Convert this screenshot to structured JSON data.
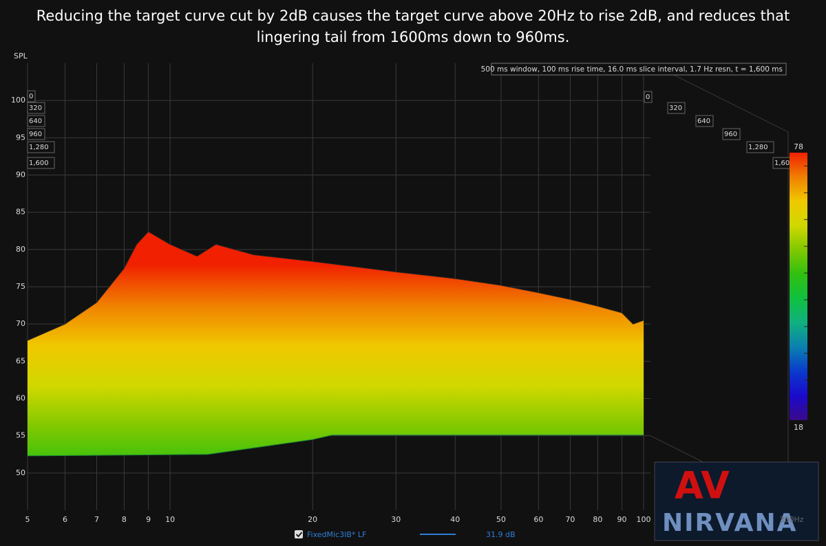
{
  "chart_data": {
    "type": "waterfall",
    "title": "Reducing the target curve cut by 2dB causes the target curve above 20Hz to rise 2dB, and reduces that lingering tail from 1600ms down to 960ms.",
    "ylabel": "SPL",
    "info": "500 ms window, 100 ms rise time, 16.0 ms slice interval, 1.7 Hz resn, t = 1,600 ms",
    "xlim": [
      5,
      100
    ],
    "xticks": [
      5,
      6,
      7,
      8,
      9,
      10,
      20,
      30,
      40,
      50,
      60,
      70,
      80,
      90,
      100
    ],
    "x_end_label": "300Hz",
    "ylim": [
      45,
      105
    ],
    "yticks": [
      50,
      55,
      60,
      65,
      70,
      75,
      80,
      85,
      90,
      95,
      100
    ],
    "time_ticks": [
      0,
      320,
      640,
      960,
      {
        "value": 1280,
        "label": "1,280"
      },
      {
        "value": 1600,
        "label": "1,600"
      }
    ],
    "surface_top": {
      "x": [
        5,
        6,
        7,
        8,
        8.5,
        9,
        10,
        11.4,
        12.5,
        15,
        20,
        30,
        40,
        50,
        60,
        70,
        80,
        90,
        95,
        100
      ],
      "values": [
        67.8,
        70,
        72.9,
        77.5,
        80.7,
        82.4,
        80.7,
        79.1,
        80.7,
        79.3,
        78.4,
        77,
        76.1,
        75.2,
        74.2,
        73.3,
        72.4,
        71.5,
        70,
        70.5
      ]
    },
    "surface_floor": {
      "x": [
        5,
        12,
        20,
        22,
        100
      ],
      "values": [
        52.3,
        52.5,
        54.5,
        55.1,
        55.1
      ]
    },
    "clim": [
      18,
      78
    ],
    "cticks": [
      21,
      27,
      33,
      39,
      45,
      51,
      57,
      63,
      69,
      75
    ],
    "colormap": [
      "#3a0a8a",
      "#1a0acc",
      "#0a3acc",
      "#0a80b0",
      "#10b080",
      "#10c040",
      "#30c010",
      "#80c800",
      "#d0d800",
      "#f0c800",
      "#f08000",
      "#f02000"
    ],
    "legend": {
      "name": "FixedMic3IB* LF",
      "value": "31.9 dB",
      "color": "#2f7fd8"
    },
    "watermark": {
      "mark": "AV",
      "text": "NIRVANA"
    }
  }
}
